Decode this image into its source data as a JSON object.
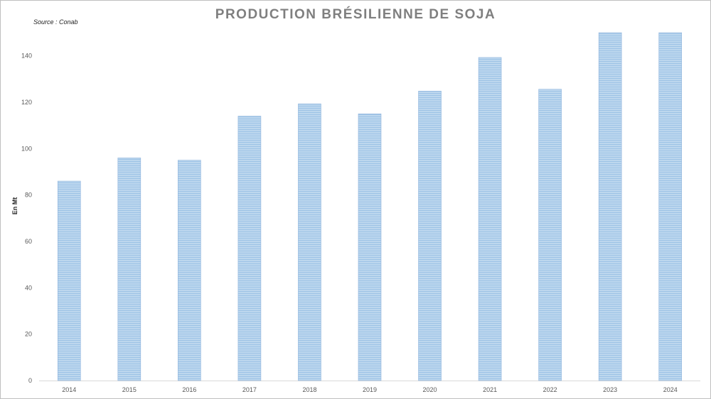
{
  "chart_data": {
    "type": "bar",
    "title": "PRODUCTION BRÉSILIENNE DE SOJA",
    "source": "Source : Conab",
    "ylabel": "En Mt",
    "xlabel": "",
    "categories": [
      "2014",
      "2015",
      "2016",
      "2017",
      "2018",
      "2019",
      "2020",
      "2021",
      "2022",
      "2023",
      "2024"
    ],
    "values": [
      86,
      96,
      95,
      114,
      119.3,
      115,
      124.8,
      139.3,
      125.6,
      150,
      150
    ],
    "ylim": [
      0,
      150
    ],
    "yticks": [
      0,
      20,
      40,
      60,
      80,
      100,
      120,
      140
    ],
    "bar_color": "#9dc3e6",
    "bar_stripe_color": "#bdd7ee",
    "bar_edge_color": "#8fb4dd",
    "grid": false,
    "legend": "none"
  }
}
